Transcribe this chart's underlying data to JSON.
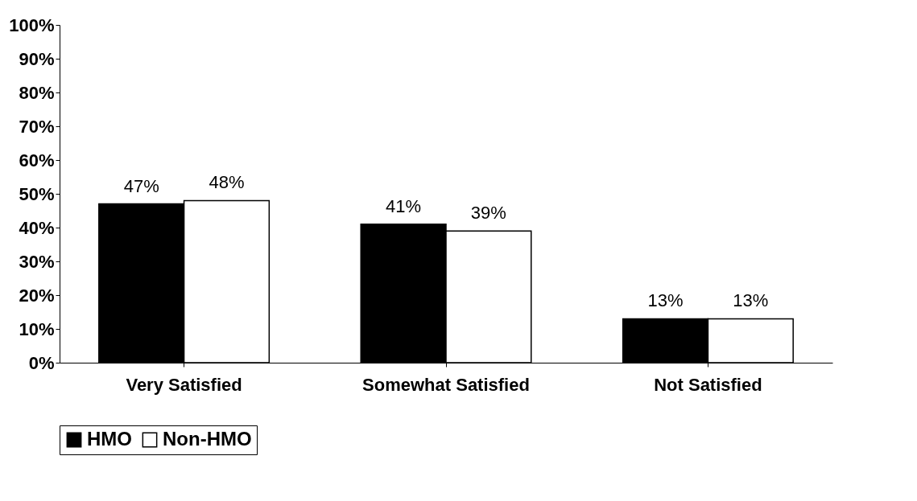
{
  "chart_data": {
    "type": "bar",
    "categories": [
      "Very Satisfied",
      "Somewhat Satisfied",
      "Not Satisfied"
    ],
    "series": [
      {
        "name": "HMO",
        "color": "#000000",
        "values": [
          47,
          41,
          13
        ],
        "value_labels": [
          "47%",
          "41%",
          "13%"
        ]
      },
      {
        "name": "Non-HMO",
        "color": "#ffffff",
        "values": [
          48,
          39,
          13
        ],
        "value_labels": [
          "48%",
          "39%",
          "13%"
        ]
      }
    ],
    "ylim": [
      0,
      100
    ],
    "yticks": [
      {
        "value": 0,
        "label": "0%"
      },
      {
        "value": 10,
        "label": "10%"
      },
      {
        "value": 20,
        "label": "20%"
      },
      {
        "value": 30,
        "label": "30%"
      },
      {
        "value": 40,
        "label": "40%"
      },
      {
        "value": 50,
        "label": "50%"
      },
      {
        "value": 60,
        "label": "60%"
      },
      {
        "value": 70,
        "label": "70%"
      },
      {
        "value": 80,
        "label": "80%"
      },
      {
        "value": 90,
        "label": "90%"
      },
      {
        "value": 100,
        "label": "100%"
      }
    ],
    "grid": false,
    "legend": "bottom"
  }
}
